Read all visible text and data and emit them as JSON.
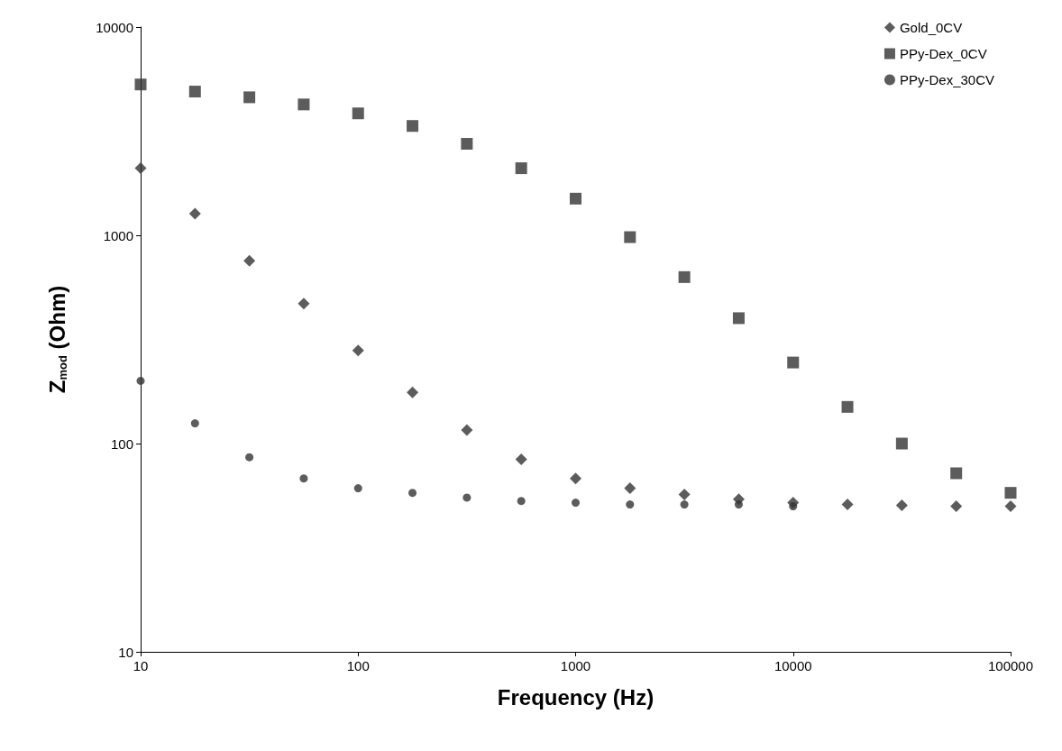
{
  "chart_data": {
    "type": "scatter",
    "xlabel": "Frequency (Hz)",
    "ylabel": "Z$_{mod}$ (Ohm)",
    "log": "xy",
    "grid": false,
    "legend": "top right",
    "x": [
      10,
      17.78,
      31.62,
      56.23,
      100,
      177.8,
      316.2,
      562.3,
      1000,
      1778,
      3162,
      5623,
      10000,
      17783,
      31623,
      56234,
      100000
    ],
    "xlim": [
      10,
      100000
    ],
    "xticks": [
      10,
      100,
      1000,
      10000,
      100000
    ],
    "ylim": [
      10,
      10000
    ],
    "yticks": [
      10,
      100,
      1000,
      10000
    ],
    "series": [
      {
        "name": "Gold_0CV",
        "color": "#333333",
        "marker": "diamond",
        "values": [
          2100,
          1270,
          755,
          470,
          280,
          176,
          116,
          84,
          68,
          61,
          57,
          54,
          52,
          51,
          50.5,
          50,
          50
        ]
      },
      {
        "name": "PPy-Dex_0CV",
        "color": "#333333",
        "marker": "square",
        "values": [
          5300,
          4900,
          4600,
          4250,
          3850,
          3350,
          2750,
          2100,
          1500,
          980,
          630,
          400,
          245,
          150,
          100,
          72,
          58
        ]
      },
      {
        "name": "PPy-Dex_30CV",
        "color": "#333333",
        "marker": "circle",
        "values": [
          200,
          125,
          86,
          68,
          61,
          58,
          55,
          53,
          52,
          51,
          51,
          51,
          50,
          null,
          null,
          null,
          null
        ]
      }
    ]
  }
}
